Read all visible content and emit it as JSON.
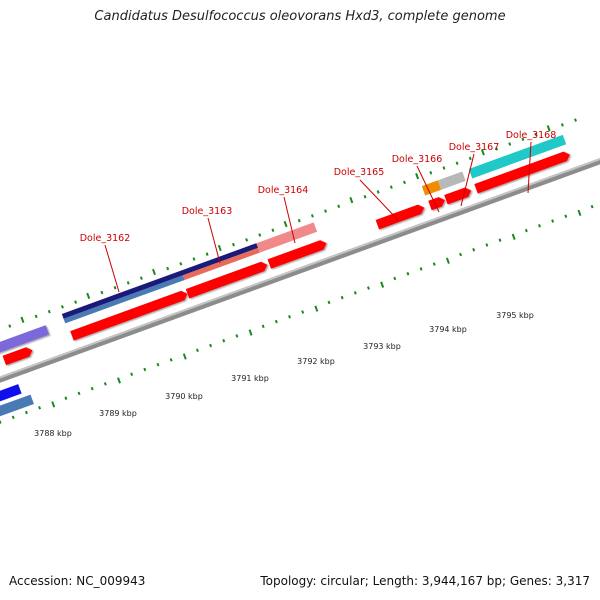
{
  "title": "Candidatus Desulfococcus oleovorans Hxd3, complete genome",
  "accession": "Accession: NC_009943",
  "summary": "Topology: circular; Length: 3,944,167 bp; Genes: 3,317",
  "gene_labels": [
    "Dole_3162",
    "Dole_3163",
    "Dole_3164",
    "Dole_3165",
    "Dole_3166",
    "Dole_3167",
    "Dole_3168"
  ],
  "kbp_labels": [
    "3788 kbp",
    "3789 kbp",
    "3790 kbp",
    "3791 kbp",
    "3792 kbp",
    "3793 kbp",
    "3794 kbp",
    "3795 kbp"
  ],
  "colors": {
    "cds_red": "#ff0000",
    "backbone": "#8c8c8c",
    "tick_green": "#1a8a1a",
    "label_red": "#cc0000",
    "purple": "#7b68d8",
    "navy": "#1a1a7a",
    "steelblue": "#4a7ab4",
    "salmon": "#e86a5a",
    "pink": "#f08a8a",
    "orange": "#f08c00",
    "gray": "#b8b8b8",
    "cyan": "#20c8c8",
    "blue": "#1010ee"
  }
}
